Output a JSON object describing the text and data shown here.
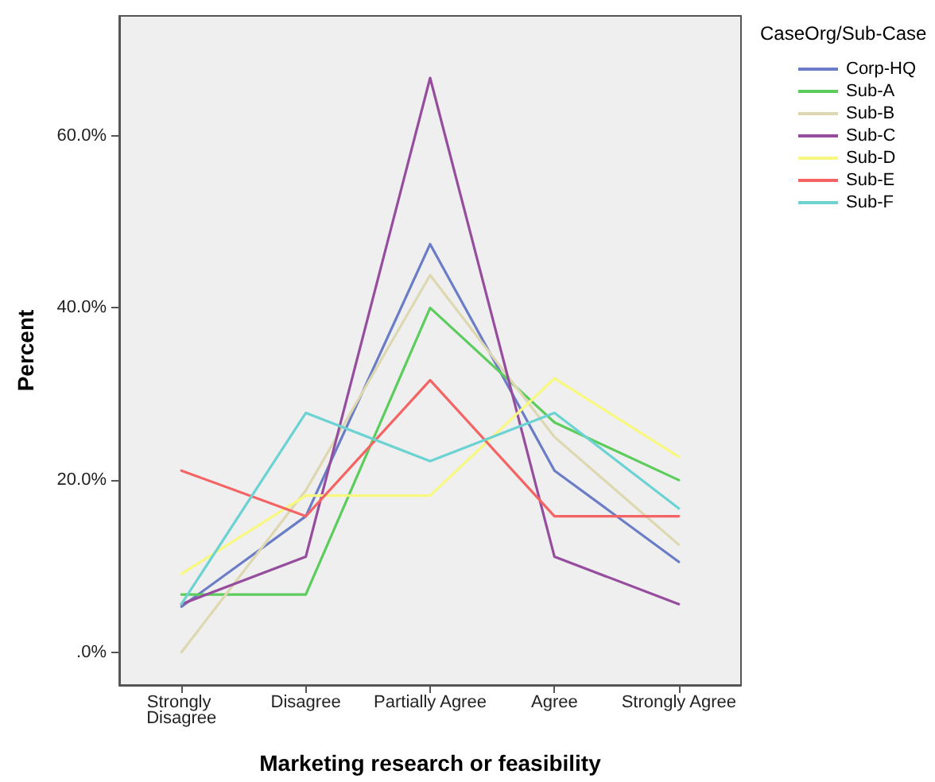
{
  "chart_data": {
    "type": "line",
    "xlabel": "Marketing research or feasibility",
    "ylabel": "Percent",
    "legend_title": "CaseOrg/Sub-Case",
    "categories": [
      "Strongly Disagree",
      "Disagree",
      "Partially Agree",
      "Agree",
      "Strongly Agree"
    ],
    "series": [
      {
        "name": "Corp-HQ",
        "color": "#6a7dc6",
        "values": [
          5.3,
          15.8,
          47.4,
          21.1,
          10.5
        ]
      },
      {
        "name": "Sub-A",
        "color": "#5ccc5c",
        "values": [
          6.7,
          6.7,
          40.0,
          26.7,
          20.0
        ]
      },
      {
        "name": "Sub-B",
        "color": "#ddd8b0",
        "values": [
          0,
          18.8,
          43.8,
          25.0,
          12.5
        ]
      },
      {
        "name": "Sub-C",
        "color": "#964d9e",
        "values": [
          5.6,
          11.1,
          66.7,
          11.1,
          5.6
        ]
      },
      {
        "name": "Sub-D",
        "color": "#f8f880",
        "values": [
          9.1,
          18.2,
          18.2,
          31.8,
          22.7
        ]
      },
      {
        "name": "Sub-E",
        "color": "#f46464",
        "values": [
          21.1,
          15.8,
          31.6,
          15.8,
          15.8
        ]
      },
      {
        "name": "Sub-F",
        "color": "#6cd2d2",
        "values": [
          5.6,
          27.8,
          22.2,
          27.8,
          16.7
        ]
      }
    ],
    "ylim": [
      -3.8,
      73.9
    ],
    "yticks": [
      {
        "value": 0,
        "label": ".0%"
      },
      {
        "value": 20,
        "label": "20.0%"
      },
      {
        "value": 40,
        "label": "40.0%"
      },
      {
        "value": 60,
        "label": "60.0%"
      }
    ],
    "grid": false,
    "legend": "right",
    "marker": "none",
    "line_style": "solid"
  }
}
